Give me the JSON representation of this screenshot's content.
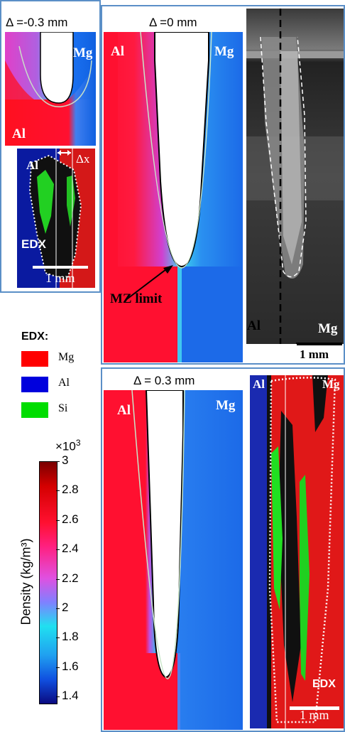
{
  "panel_top_left": {
    "delta_label": "Δ =-0.3 mm",
    "label_mg": "Mg",
    "label_al": "Al"
  },
  "panel_edx_small": {
    "label_al": "Al",
    "label_dx": "Δx",
    "label_edx": "EDX",
    "scale_bar": "1 mm"
  },
  "panel_center": {
    "delta_label": "Δ =0 mm",
    "label_al": "Al",
    "label_mg": "Mg",
    "mz_limit": "MZ limit"
  },
  "panel_photo": {
    "label_al": "Al",
    "label_mg": "Mg",
    "scale_bar": "1 mm"
  },
  "legend": {
    "title": "EDX:",
    "items": [
      {
        "label": "Mg",
        "color": "#ff0000"
      },
      {
        "label": "Al",
        "color": "#0000dd"
      },
      {
        "label": "Si",
        "color": "#00dd00"
      }
    ]
  },
  "colorbar": {
    "multiplier": "×10",
    "exponent": "3",
    "label": "Density (kg/m³)",
    "ticks": [
      "3",
      "2.8",
      "2.6",
      "2.4",
      "2.2",
      "2",
      "1.8",
      "1.6",
      "1.4"
    ]
  },
  "panel_bottom": {
    "delta_label": "Δ = 0.3 mm",
    "label_al": "Al",
    "label_mg": "Mg"
  },
  "panel_edx_large": {
    "label_al": "Al",
    "label_mg": "Mg",
    "label_edx": "EDX",
    "scale_bar": "1 mm"
  }
}
